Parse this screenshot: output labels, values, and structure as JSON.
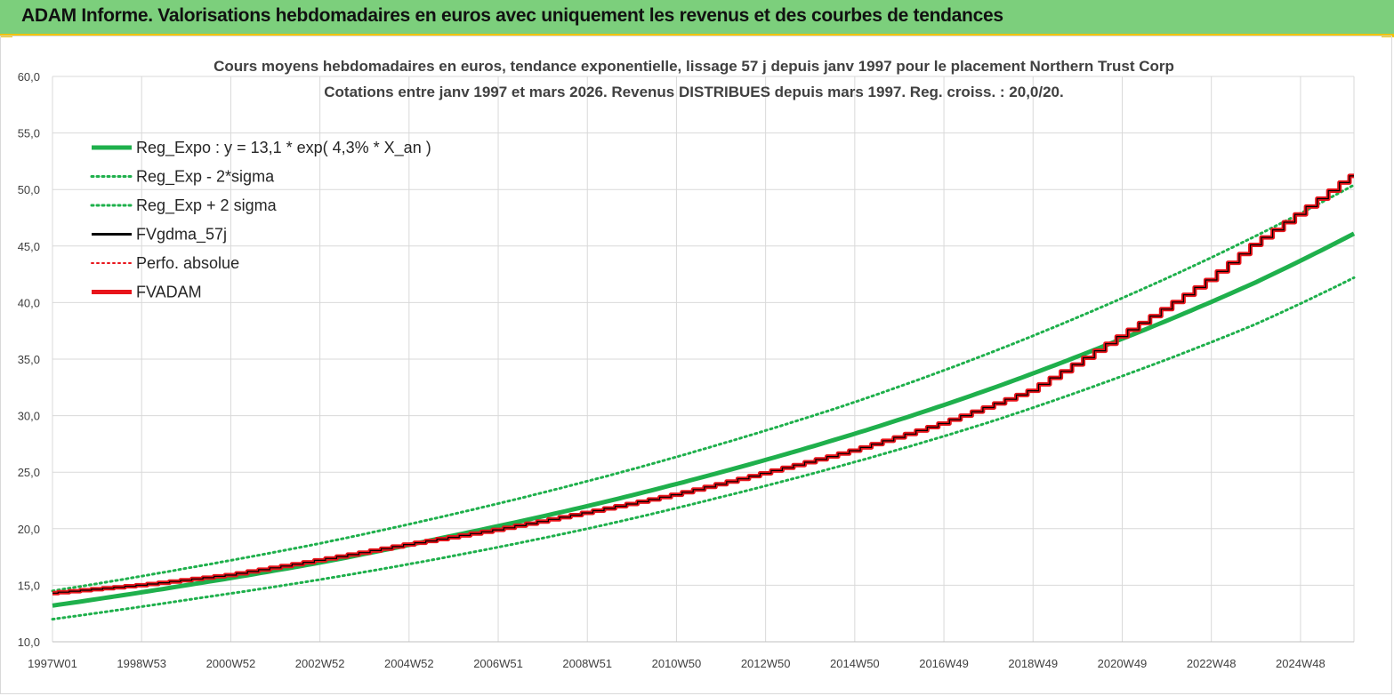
{
  "header": {
    "title": "ADAM Informe. Valorisations hebdomadaires en euros avec uniquement les revenus et des courbes de tendances"
  },
  "colors": {
    "header_bg": "#7ccf7c",
    "accent": "#f2c200",
    "green": "#1fb04c",
    "red": "#e8141b",
    "black": "#000000"
  },
  "chart_data": {
    "type": "line",
    "title_lines": [
      "Cours moyens hebdomadaires en euros, tendance exponentielle, lissage 57 j depuis janv 1997 pour le placement Northern Trust Corp",
      "Cotations entre janv 1997 et mars 2026. Revenus DISTRIBUES depuis mars 1997. Reg. croiss. : 20,0/20."
    ],
    "ylim": [
      10,
      60
    ],
    "y_ticks": [
      "10,0",
      "15,0",
      "20,0",
      "25,0",
      "30,0",
      "35,0",
      "40,0",
      "45,0",
      "50,0",
      "55,0",
      "60,0"
    ],
    "x_range_years": [
      1997.0,
      2026.2
    ],
    "x_ticks": [
      {
        "label": "1997W01",
        "year": 1997.0
      },
      {
        "label": "1998W53",
        "year": 1999.0
      },
      {
        "label": "2000W52",
        "year": 2001.0
      },
      {
        "label": "2002W52",
        "year": 2003.0
      },
      {
        "label": "2004W52",
        "year": 2005.0
      },
      {
        "label": "2006W51",
        "year": 2007.0
      },
      {
        "label": "2008W51",
        "year": 2009.0
      },
      {
        "label": "2010W50",
        "year": 2011.0
      },
      {
        "label": "2012W50",
        "year": 2013.0
      },
      {
        "label": "2014W50",
        "year": 2015.0
      },
      {
        "label": "2016W49",
        "year": 2017.0
      },
      {
        "label": "2018W49",
        "year": 2019.0
      },
      {
        "label": "2020W49",
        "year": 2021.0
      },
      {
        "label": "2022W48",
        "year": 2023.0
      },
      {
        "label": "2024W48",
        "year": 2025.0
      }
    ],
    "grid": true,
    "legend_position": "top-left",
    "legend": [
      {
        "label": "Reg_Expo : y = 13,1 * exp( 4,3% *  X_an )",
        "color": "#1fb04c",
        "style": "solid-thick"
      },
      {
        "label": "Reg_Exp - 2*sigma",
        "color": "#1fb04c",
        "style": "dotted"
      },
      {
        "label": "Reg_Exp + 2 sigma",
        "color": "#1fb04c",
        "style": "dotted"
      },
      {
        "label": "FVgdma_57j",
        "color": "#000000",
        "style": "solid"
      },
      {
        "label": "Perfo. absolue",
        "color": "#e8141b",
        "style": "dotted"
      },
      {
        "label": "FVADAM",
        "color": "#e8141b",
        "style": "solid-thick"
      }
    ],
    "series": [
      {
        "name": "Reg_Expo : y = 13,1 * exp( 4,3% *  X_an )",
        "x": [
          1997,
          2000,
          2003,
          2006,
          2009,
          2012,
          2015,
          2018,
          2021,
          2024,
          2026.2
        ],
        "y": [
          13.2,
          15.0,
          17.0,
          19.4,
          22.0,
          25.0,
          28.4,
          32.3,
          36.8,
          41.8,
          46.1
        ]
      },
      {
        "name": "Reg_Exp - 2*sigma",
        "x": [
          1997,
          2000,
          2003,
          2006,
          2009,
          2012,
          2015,
          2018,
          2021,
          2024,
          2026.2
        ],
        "y": [
          12.0,
          13.7,
          15.5,
          17.6,
          20.0,
          22.8,
          25.9,
          29.4,
          33.5,
          38.1,
          42.2
        ]
      },
      {
        "name": "Reg_Exp + 2 sigma",
        "x": [
          1997,
          2000,
          2003,
          2006,
          2009,
          2012,
          2015,
          2018,
          2021,
          2024,
          2026.2
        ],
        "y": [
          14.5,
          16.5,
          18.7,
          21.3,
          24.2,
          27.5,
          31.2,
          35.5,
          40.4,
          45.9,
          50.4
        ]
      },
      {
        "name": "FVADAM",
        "x": [
          1997,
          1999,
          2001,
          2003,
          2005,
          2007,
          2009,
          2011,
          2013,
          2015,
          2017,
          2019,
          2021,
          2023,
          2024,
          2025,
          2026.2
        ],
        "y": [
          14.3,
          15.0,
          15.9,
          17.2,
          18.6,
          19.9,
          21.4,
          23.0,
          24.9,
          26.9,
          29.3,
          32.2,
          37.0,
          42.0,
          45.1,
          47.8,
          51.2
        ]
      },
      {
        "name": "FVgdma_57j",
        "x": [
          1997,
          1999,
          2001,
          2003,
          2005,
          2007,
          2009,
          2011,
          2013,
          2015,
          2017,
          2019,
          2021,
          2023,
          2024,
          2025,
          2026.2
        ],
        "y": [
          14.3,
          15.0,
          15.9,
          17.2,
          18.6,
          19.9,
          21.4,
          23.0,
          24.9,
          26.9,
          29.3,
          32.2,
          37.0,
          42.0,
          45.1,
          47.8,
          51.2
        ]
      }
    ]
  }
}
